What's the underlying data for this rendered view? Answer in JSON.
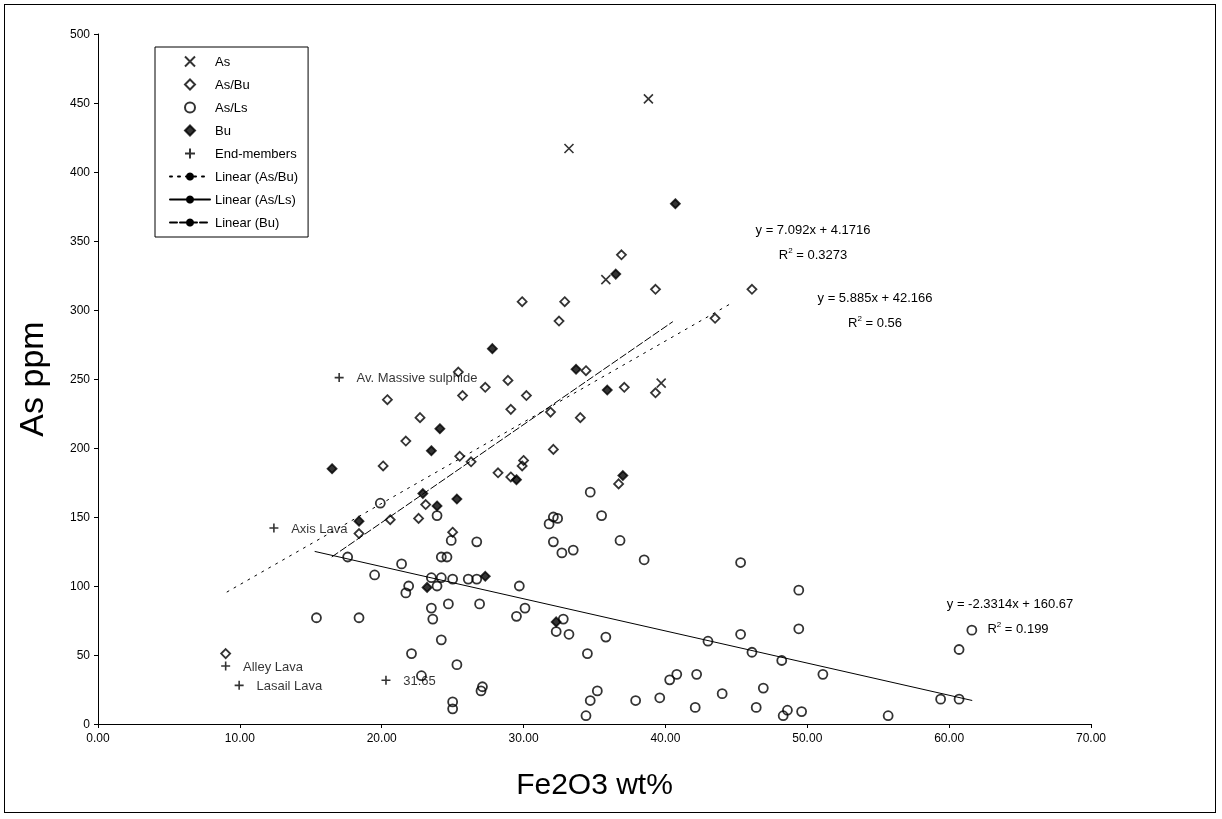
{
  "chart_data": {
    "type": "scatter",
    "xlabel": "Fe2O3 wt%",
    "ylabel": "As ppm",
    "xlim": [
      0,
      70
    ],
    "xticks": [
      {
        "value": 0,
        "label": "0.00"
      },
      {
        "value": 10,
        "label": "10.00"
      },
      {
        "value": 20,
        "label": "20.00"
      },
      {
        "value": 30,
        "label": "30.00"
      },
      {
        "value": 40,
        "label": "40.00"
      },
      {
        "value": 50,
        "label": "50.00"
      },
      {
        "value": 60,
        "label": "60.00"
      },
      {
        "value": 70,
        "label": "70.00"
      }
    ],
    "ylim": [
      0,
      500
    ],
    "yticks": [
      0,
      50,
      100,
      150,
      200,
      250,
      300,
      350,
      400,
      450,
      500
    ],
    "grid": false,
    "legend": "top left",
    "series": [
      {
        "name": "As",
        "marker": "cross",
        "color": "#000000",
        "x": [
          38.8,
          33.2,
          35.8,
          39.7
        ],
        "values": [
          453,
          417,
          322,
          247
        ]
      },
      {
        "name": "As/Bu",
        "marker": "diamond-open",
        "color": "#000000",
        "x": [
          29.9,
          32.9,
          32.5,
          36.9,
          39.3,
          46.1,
          43.5,
          34.4,
          37.1,
          39.3,
          34.0,
          25.4,
          28.9,
          20.4,
          25.7,
          27.3,
          30.2,
          29.1,
          31.9,
          22.7,
          21.7,
          20.1,
          25.5,
          26.3,
          28.2,
          29.1,
          30.0,
          29.9,
          32.1,
          23.1,
          20.6,
          22.6,
          18.4,
          25.0,
          36.7,
          9.0
        ],
        "values": [
          306,
          306,
          292,
          340,
          315,
          315,
          294,
          256,
          244,
          240,
          222,
          255,
          249,
          235,
          238,
          244,
          238,
          228,
          226,
          222,
          205,
          187,
          194,
          190,
          182,
          179,
          191,
          187,
          199,
          159,
          148,
          149,
          138,
          139,
          174,
          51
        ]
      },
      {
        "name": "As/Ls",
        "marker": "circle-open",
        "color": "#000000",
        "x": [
          19.9,
          17.6,
          21.4,
          19.5,
          21.9,
          21.7,
          23.5,
          24.2,
          23.9,
          25.0,
          26.1,
          26.7,
          24.2,
          24.6,
          24.9,
          26.7,
          23.9,
          29.7,
          24.7,
          26.9,
          23.5,
          23.6,
          30.1,
          29.5,
          15.4,
          18.4,
          24.2,
          22.1,
          25.3,
          22.8,
          27.1,
          27.0,
          25.0,
          25.0,
          34.7,
          32.1,
          32.4,
          31.8,
          35.5,
          32.1,
          32.7,
          33.5,
          36.8,
          38.5,
          45.3,
          49.4,
          49.4,
          32.8,
          32.3,
          33.2,
          35.8,
          34.5,
          43.0,
          45.3,
          46.1,
          48.2,
          51.1,
          61.6,
          60.7,
          59.4,
          60.7,
          55.7,
          49.6,
          48.6,
          48.3,
          46.4,
          46.9,
          44.0,
          42.1,
          42.2,
          40.8,
          40.3,
          39.6,
          37.9,
          35.2,
          34.7,
          34.4
        ],
        "values": [
          160,
          121,
          116,
          108,
          100,
          95,
          106,
          106,
          100,
          105,
          105,
          105,
          121,
          121,
          133,
          132,
          151,
          100,
          87,
          87,
          84,
          76,
          84,
          78,
          77,
          77,
          61,
          51,
          43,
          35,
          27,
          24,
          16,
          11,
          168,
          150,
          149,
          145,
          151,
          132,
          124,
          126,
          133,
          119,
          117,
          97,
          69,
          76,
          67,
          65,
          63,
          51,
          60,
          65,
          52,
          46,
          36,
          68,
          54,
          18,
          18,
          6,
          9,
          10,
          6,
          12,
          26,
          22,
          12,
          36,
          36,
          32,
          19,
          17,
          24,
          17,
          6
        ]
      },
      {
        "name": "Bu",
        "marker": "diamond",
        "color": "#000000",
        "x": [
          40.7,
          36.5,
          33.7,
          35.9,
          27.8,
          16.5,
          24.1,
          23.5,
          29.5,
          22.9,
          25.3,
          23.9,
          18.4,
          27.3,
          23.2,
          32.3,
          37.0
        ],
        "values": [
          377,
          326,
          257,
          242,
          272,
          185,
          214,
          198,
          177,
          167,
          163,
          158,
          147,
          107,
          99,
          74,
          180
        ]
      },
      {
        "name": "End-members",
        "marker": "plus",
        "color": "#000000",
        "x": [
          17.0,
          12.4,
          9.0,
          9.95,
          20.3
        ],
        "values": [
          251,
          142,
          42,
          28,
          31.65
        ],
        "value_labels": [
          "Av. Massive sulphide",
          "Axis Lava",
          "Alley Lava",
          "Lasail Lava",
          "31.65"
        ]
      },
      {
        "name": "Linear (As/Bu)",
        "type": "line",
        "marker": "none",
        "line_style": "dotted",
        "color": "#000000",
        "x": [
          9.1,
          44.7
        ],
        "values": [
          95.7,
          305.2
        ]
      },
      {
        "name": "Linear (As/Ls)",
        "type": "line",
        "marker": "none",
        "line_style": "solid",
        "color": "#000000",
        "x": [
          15.3,
          61.6
        ],
        "values": [
          125.0,
          17.1
        ]
      },
      {
        "name": "Linear (Bu)",
        "type": "line",
        "marker": "none",
        "line_style": "dashed",
        "color": "#000000",
        "x": [
          16.5,
          40.5
        ],
        "values": [
          121.2,
          291.4
        ]
      }
    ],
    "annotations": [
      "y = 7.092x + 4.1716",
      "R$^{2}$ = 0.3273",
      "y = 5.885x + 42.166",
      "R$^{2}$ = 0.56",
      "y = -2.3314x + 160.67",
      "R$^{2}$ = 0.199"
    ]
  }
}
